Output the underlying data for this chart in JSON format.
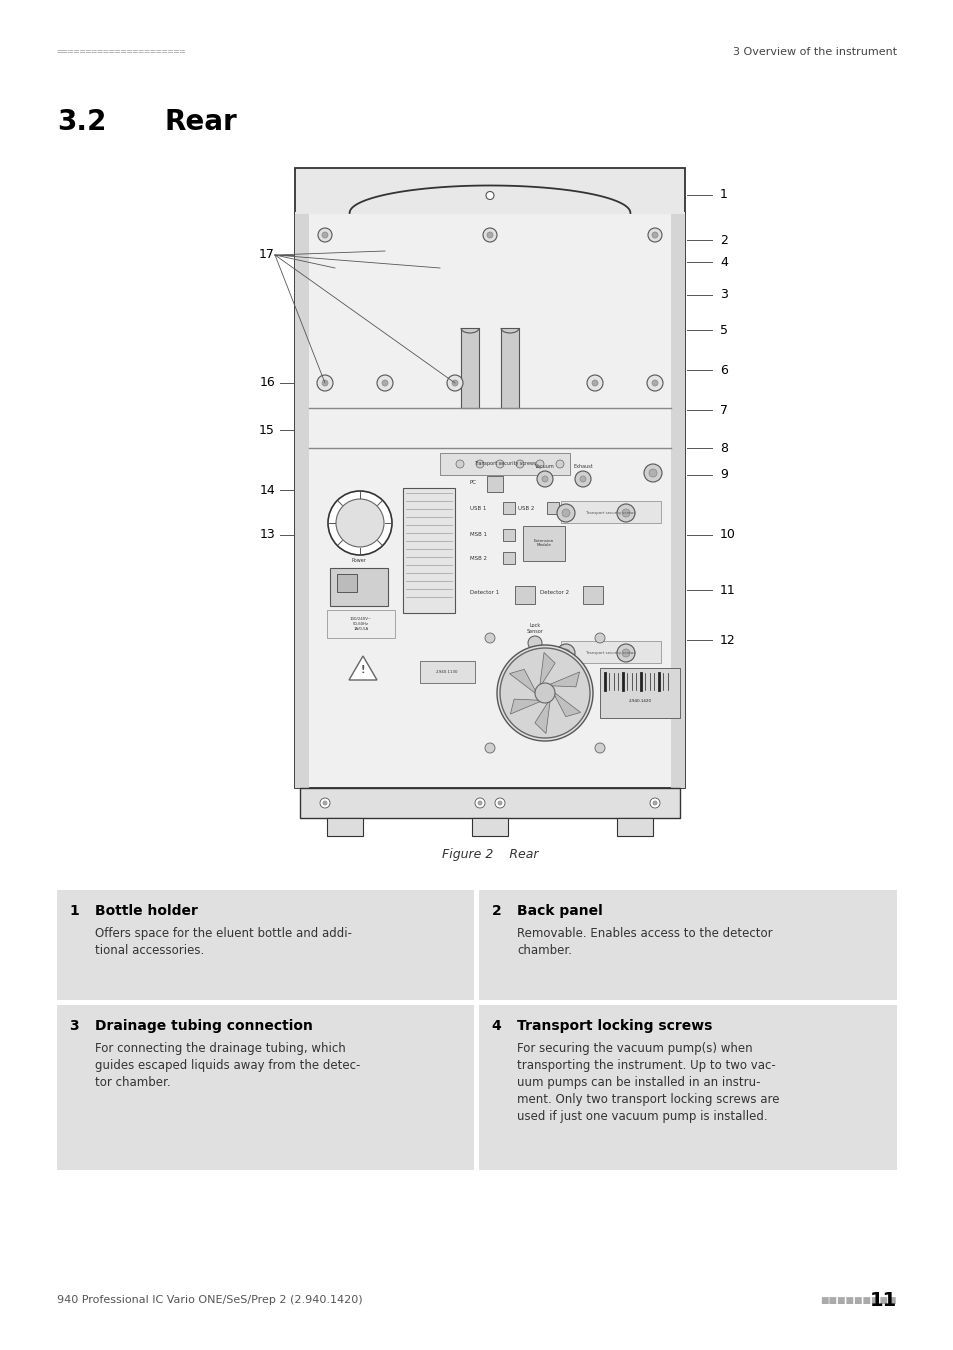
{
  "bg_color": "#ffffff",
  "header_dots_color": "#aaaaaa",
  "header_right_text": "3 Overview of the instrument",
  "section_title": "3.2",
  "section_title_label": "Rear",
  "figure_caption": "Figure 2    Rear",
  "footer_left": "940 Professional IC Vario ONE/SeS/Prep 2 (2.940.1420)",
  "table_bg": "#e0e0e0",
  "table_items": [
    {
      "num": "1",
      "title": "Bottle holder",
      "body": "Offers space for the eluent bottle and addi-\ntional accessories."
    },
    {
      "num": "2",
      "title": "Back panel",
      "body": "Removable. Enables access to the detector\nchamber."
    },
    {
      "num": "3",
      "title": "Drainage tubing connection",
      "body": "For connecting the drainage tubing, which\nguides escaped liquids away from the detec-\ntor chamber."
    },
    {
      "num": "4",
      "title": "Transport locking screws",
      "body": "For securing the vacuum pump(s) when\ntransporting the instrument. Up to two vac-\nuum pumps can be installed in an instru-\nment. Only two transport locking screws are\nused if just one vacuum pump is installed."
    }
  ]
}
